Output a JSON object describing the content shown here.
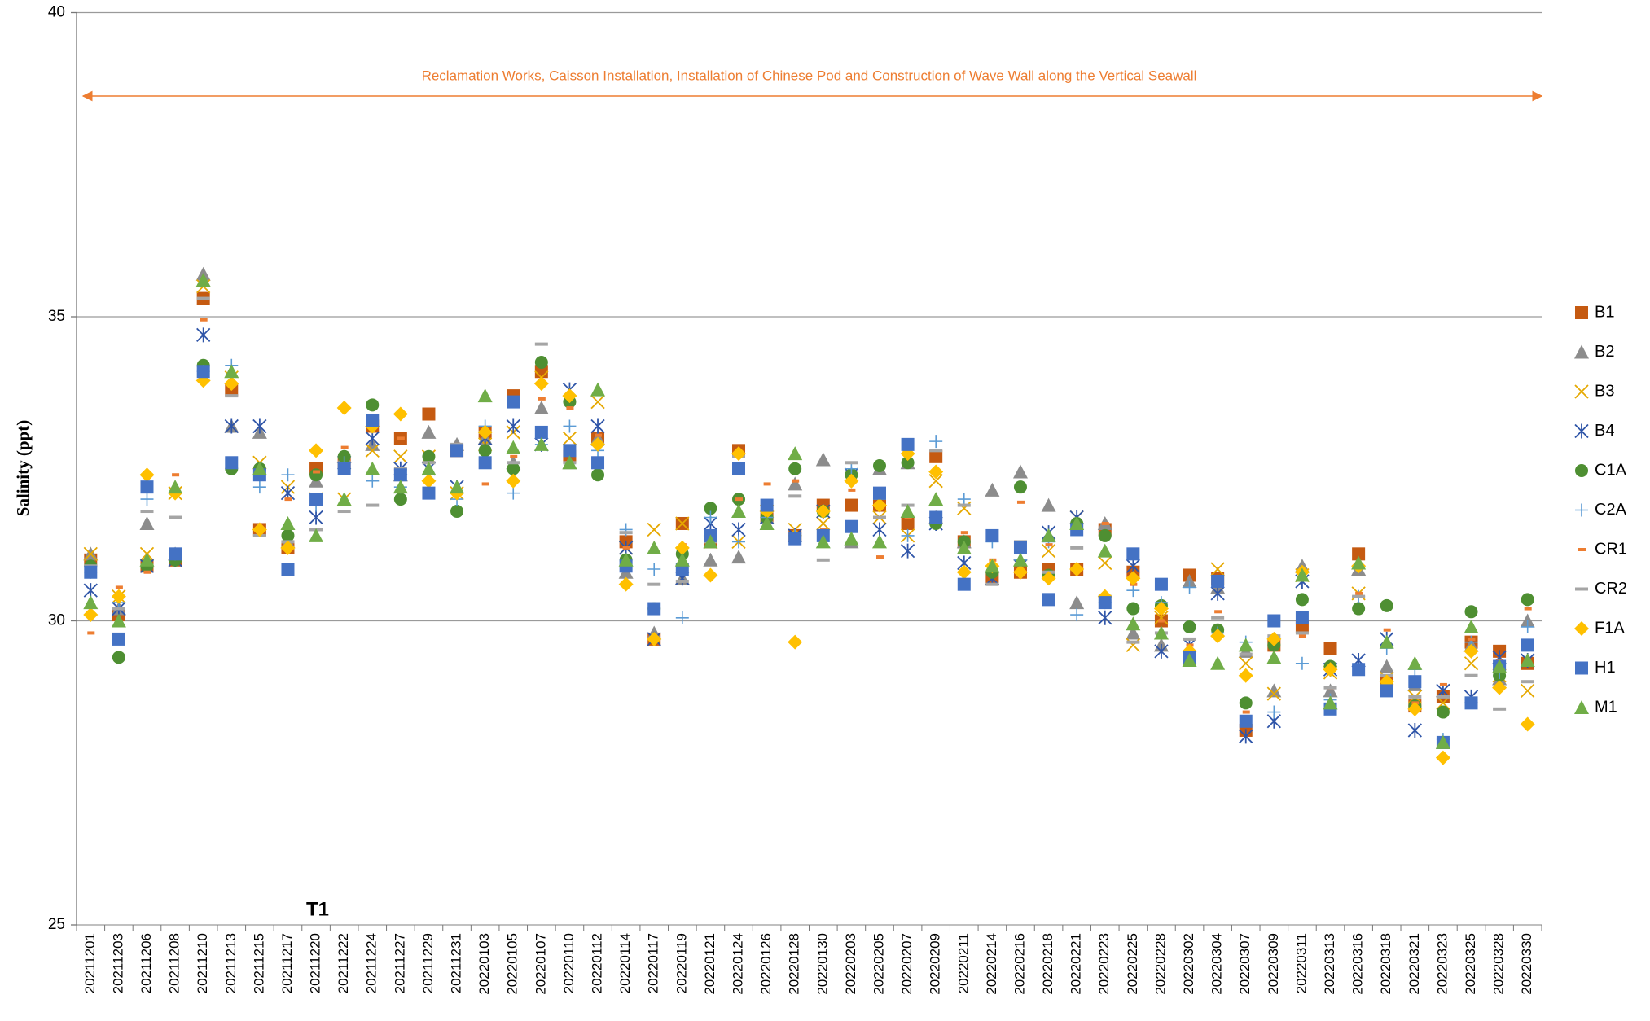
{
  "chart_data": {
    "type": "scatter",
    "ylabel": "Salinity (ppt)",
    "annotations": [
      "Reclamation Works, Caisson Installation, Installation of Chinese Pod and Construction of Wave Wall along the Vertical Seawall",
      "T1"
    ],
    "annotation_color": "#ED7D31",
    "ylim": [
      25,
      40
    ],
    "yticks": [
      25,
      30,
      35,
      40
    ],
    "grid": true,
    "legend": "right",
    "categories": [
      "20211201",
      "20211203",
      "20211206",
      "20211208",
      "20211210",
      "20211213",
      "20211215",
      "20211217",
      "20211220",
      "20211222",
      "20211224",
      "20211227",
      "20211229",
      "20211231",
      "20220103",
      "20220105",
      "20220107",
      "20220110",
      "20220112",
      "20220114",
      "20220117",
      "20220119",
      "20220121",
      "20220124",
      "20220126",
      "20220128",
      "20220130",
      "20220203",
      "20220205",
      "20220207",
      "20220209",
      "20220211",
      "20220214",
      "20220216",
      "20220218",
      "20220221",
      "20220223",
      "20220225",
      "20220228",
      "20220302",
      "20220304",
      "20220307",
      "20220309",
      "20220311",
      "20220313",
      "20220316",
      "20220318",
      "20220321",
      "20220323",
      "20220325",
      "20220328",
      "20220330"
    ],
    "series": [
      {
        "name": "B1",
        "color": "#C55A11",
        "marker": "square",
        "values": [
          31.0,
          30.1,
          30.9,
          31.0,
          35.3,
          33.8,
          31.5,
          31.2,
          32.5,
          32.6,
          33.2,
          33.0,
          33.4,
          32.8,
          33.1,
          33.7,
          34.1,
          32.7,
          33.0,
          31.3,
          29.7,
          31.6,
          31.3,
          32.8,
          31.7,
          31.4,
          31.9,
          31.9,
          31.9,
          31.6,
          32.7,
          31.3,
          30.7,
          30.8,
          30.85,
          30.85,
          31.5,
          30.8,
          30.0,
          30.75,
          30.7,
          28.2,
          29.6,
          29.9,
          29.55,
          31.1,
          29.0,
          28.6,
          28.75,
          29.65,
          29.5,
          29.3
        ]
      },
      {
        "name": "B2",
        "color": "#8C8C8C",
        "marker": "triangle",
        "values": [
          31.1,
          30.2,
          31.6,
          31.1,
          35.7,
          33.2,
          33.1,
          31.3,
          32.3,
          32.7,
          32.9,
          32.4,
          33.1,
          32.9,
          33.0,
          32.6,
          33.5,
          32.6,
          33.0,
          30.8,
          29.8,
          30.7,
          31.0,
          31.05,
          31.7,
          32.25,
          32.65,
          31.3,
          32.5,
          32.6,
          31.7,
          31.3,
          32.15,
          32.45,
          31.9,
          30.3,
          31.6,
          29.8,
          29.6,
          30.65,
          30.55,
          29.5,
          28.85,
          30.9,
          28.85,
          30.85,
          29.25,
          28.95,
          28.0,
          29.6,
          29.05,
          30.0
        ]
      },
      {
        "name": "B3",
        "color": "#E6A800",
        "marker": "cross",
        "values": [
          31.1,
          30.4,
          31.1,
          32.1,
          35.5,
          34.0,
          32.6,
          32.2,
          32.0,
          32.0,
          32.8,
          32.7,
          32.7,
          32.1,
          32.9,
          33.1,
          34.0,
          33.0,
          33.6,
          31.2,
          31.5,
          31.6,
          31.3,
          31.3,
          31.8,
          31.5,
          31.6,
          32.4,
          31.7,
          31.4,
          32.3,
          31.85,
          30.7,
          30.9,
          31.15,
          31.7,
          30.95,
          29.6,
          30.05,
          29.4,
          30.85,
          29.3,
          28.8,
          30.75,
          29.15,
          30.45,
          29.05,
          28.75,
          28.65,
          29.3,
          29.1,
          28.85
        ]
      },
      {
        "name": "B4",
        "color": "#2F55A8",
        "marker": "asterisk",
        "values": [
          30.5,
          30.2,
          30.9,
          31.0,
          34.7,
          33.2,
          33.2,
          32.1,
          31.7,
          32.6,
          33.0,
          32.5,
          32.5,
          32.2,
          33.0,
          33.2,
          32.9,
          33.8,
          33.2,
          31.2,
          29.7,
          30.7,
          31.6,
          31.5,
          31.7,
          31.4,
          31.8,
          32.4,
          31.5,
          31.15,
          31.6,
          30.95,
          30.7,
          30.9,
          31.45,
          31.7,
          30.05,
          30.9,
          29.5,
          29.6,
          30.45,
          28.1,
          28.35,
          30.65,
          29.2,
          29.35,
          29.7,
          28.2,
          28.85,
          28.75,
          29.4,
          29.35
        ]
      },
      {
        "name": "C1A",
        "color": "#4E8F32",
        "marker": "circle",
        "values": [
          30.9,
          29.4,
          30.9,
          31.0,
          34.2,
          32.5,
          32.5,
          31.4,
          32.4,
          32.7,
          33.55,
          32.0,
          32.7,
          31.8,
          32.8,
          32.5,
          34.25,
          33.6,
          32.4,
          31.0,
          30.2,
          31.1,
          31.85,
          32.0,
          31.7,
          32.5,
          31.8,
          32.4,
          32.55,
          32.6,
          31.6,
          31.3,
          30.8,
          32.2,
          30.75,
          31.6,
          31.4,
          30.2,
          30.25,
          29.9,
          29.85,
          28.65,
          29.6,
          30.35,
          29.25,
          30.2,
          30.25,
          28.6,
          28.5,
          30.15,
          29.1,
          30.35
        ]
      },
      {
        "name": "C2A",
        "color": "#5B9BD5",
        "marker": "plus",
        "values": [
          30.8,
          30.3,
          32.0,
          31.1,
          34.1,
          34.2,
          32.2,
          32.4,
          31.9,
          32.6,
          32.3,
          32.2,
          32.4,
          32.0,
          33.2,
          32.1,
          32.9,
          33.2,
          32.8,
          31.5,
          30.85,
          30.05,
          31.7,
          31.3,
          31.7,
          31.4,
          31.8,
          32.5,
          32.0,
          31.4,
          32.95,
          32.0,
          31.3,
          31.0,
          31.3,
          30.1,
          30.3,
          30.5,
          30.3,
          30.55,
          29.8,
          29.65,
          28.5,
          29.3,
          28.7,
          30.4,
          29.55,
          29.2,
          28.05,
          29.65,
          29.15,
          29.9
        ]
      },
      {
        "name": "CR1",
        "color": "#ED7D31",
        "marker": "dash",
        "values": [
          29.8,
          30.55,
          30.8,
          32.4,
          34.95,
          33.9,
          31.5,
          32.0,
          32.45,
          32.85,
          33.3,
          33.0,
          32.3,
          32.9,
          32.25,
          32.7,
          33.65,
          33.5,
          33.05,
          31.2,
          30.2,
          31.25,
          31.3,
          32.0,
          32.25,
          32.3,
          31.5,
          32.15,
          31.05,
          31.7,
          31.7,
          31.45,
          31.0,
          31.95,
          31.25,
          30.85,
          31.6,
          30.6,
          30.0,
          29.6,
          30.15,
          28.5,
          29.75,
          29.75,
          28.9,
          30.45,
          29.85,
          28.65,
          28.95,
          29.7,
          29.35,
          30.2
        ]
      },
      {
        "name": "CR2",
        "color": "#A5A5A5",
        "marker": "longdash",
        "values": [
          30.9,
          30.2,
          31.8,
          31.7,
          35.3,
          33.7,
          31.4,
          31.3,
          31.5,
          31.8,
          31.9,
          32.5,
          32.6,
          32.9,
          33.1,
          32.6,
          34.55,
          32.6,
          32.9,
          31.45,
          30.6,
          30.65,
          31.3,
          32.7,
          31.8,
          32.05,
          31.0,
          32.6,
          31.7,
          31.9,
          32.8,
          31.9,
          30.6,
          31.3,
          30.8,
          31.2,
          30.4,
          29.65,
          29.8,
          29.7,
          30.05,
          29.45,
          29.75,
          29.8,
          28.9,
          30.4,
          29.1,
          28.75,
          28.75,
          29.1,
          28.55,
          29.0
        ]
      },
      {
        "name": "F1A",
        "color": "#FFC000",
        "marker": "diamond",
        "values": [
          30.1,
          30.4,
          32.4,
          32.1,
          33.95,
          33.9,
          31.5,
          31.2,
          32.8,
          33.5,
          33.2,
          33.4,
          32.3,
          32.1,
          33.1,
          32.3,
          33.9,
          33.7,
          32.9,
          30.6,
          29.7,
          31.2,
          30.75,
          32.75,
          31.8,
          29.65,
          31.8,
          32.3,
          31.9,
          32.75,
          32.45,
          30.8,
          30.9,
          30.8,
          30.7,
          30.85,
          30.4,
          30.7,
          30.2,
          29.5,
          29.75,
          29.1,
          29.7,
          30.8,
          29.2,
          30.9,
          29.0,
          28.55,
          27.75,
          29.5,
          28.9,
          28.3
        ]
      },
      {
        "name": "H1",
        "color": "#4472C4",
        "marker": "square",
        "values": [
          30.8,
          29.7,
          32.2,
          31.1,
          34.1,
          32.6,
          32.4,
          30.85,
          32.0,
          32.5,
          33.3,
          32.4,
          32.1,
          32.8,
          32.6,
          33.6,
          33.1,
          32.8,
          32.6,
          30.9,
          30.2,
          30.85,
          31.4,
          32.5,
          31.9,
          31.35,
          31.4,
          31.55,
          32.1,
          32.9,
          31.7,
          30.6,
          31.4,
          31.2,
          30.35,
          31.5,
          30.3,
          31.1,
          30.6,
          29.4,
          30.65,
          28.35,
          30.0,
          30.05,
          28.55,
          29.2,
          28.85,
          29.0,
          28.0,
          28.65,
          29.25,
          29.6
        ]
      },
      {
        "name": "M1",
        "color": "#70AD47",
        "marker": "triangle",
        "values": [
          30.3,
          30.0,
          31.0,
          32.2,
          35.6,
          34.1,
          32.5,
          31.6,
          31.4,
          32.0,
          32.5,
          32.2,
          32.5,
          32.2,
          33.7,
          32.85,
          32.9,
          32.6,
          33.8,
          31.0,
          31.2,
          31.0,
          31.3,
          31.8,
          31.6,
          32.75,
          31.3,
          31.35,
          31.3,
          31.8,
          32.0,
          31.2,
          30.9,
          31.0,
          31.4,
          31.6,
          31.15,
          29.95,
          29.8,
          29.35,
          29.3,
          29.6,
          29.4,
          30.75,
          28.65,
          30.95,
          29.65,
          29.3,
          28.0,
          29.9,
          29.25,
          29.35
        ]
      }
    ]
  }
}
